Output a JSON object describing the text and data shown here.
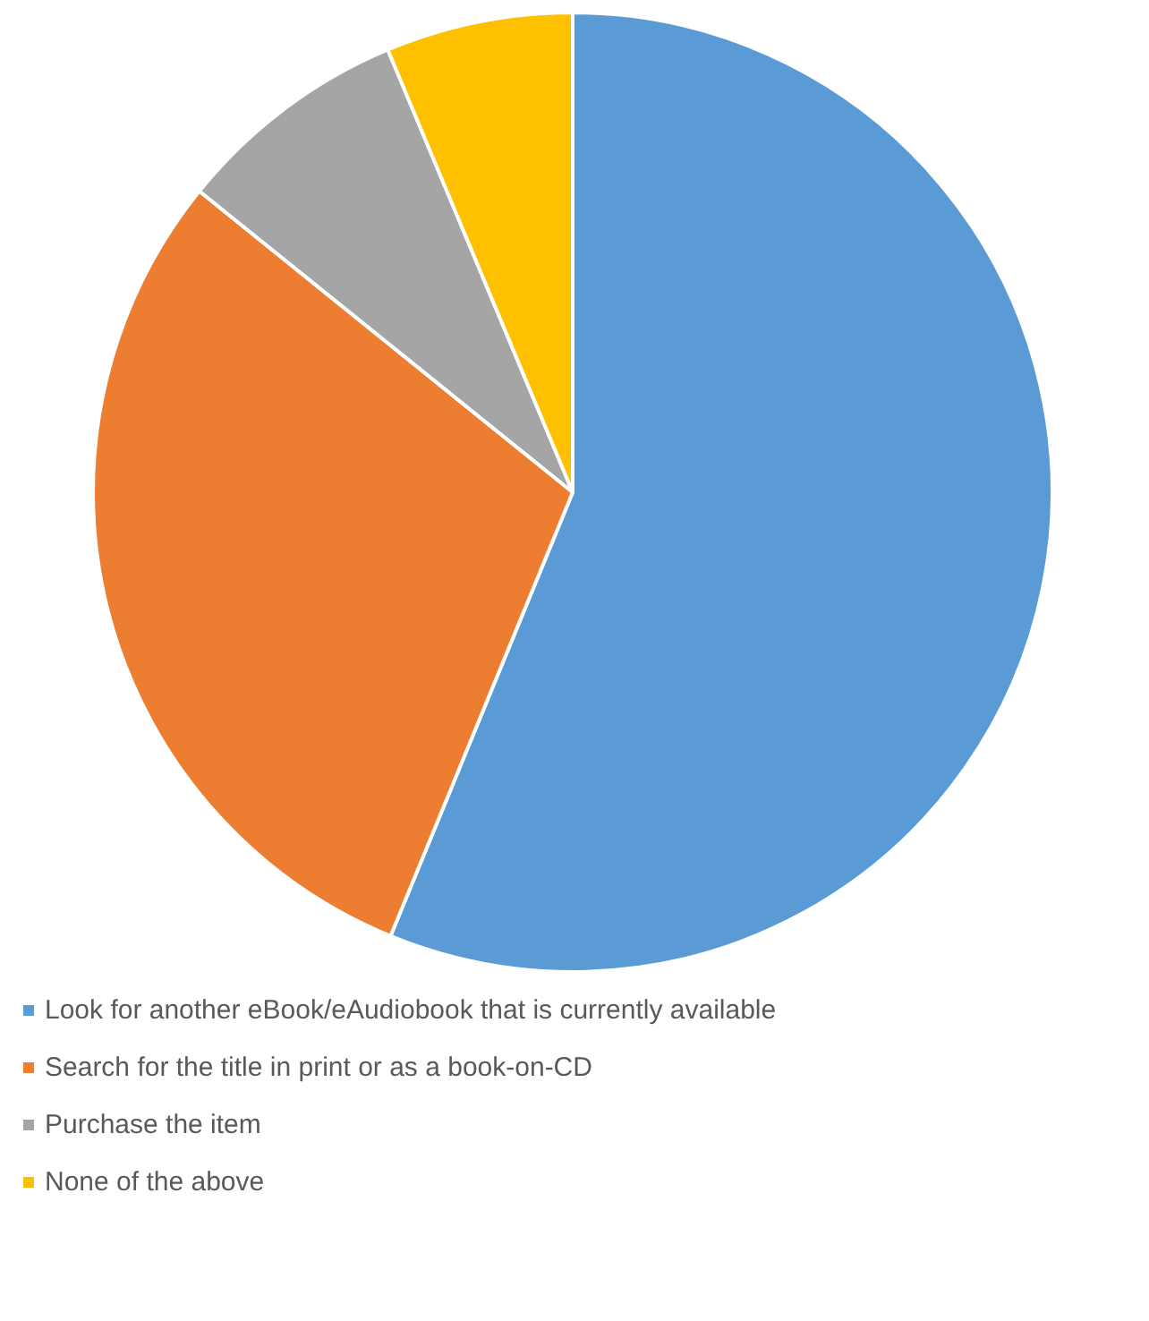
{
  "chart_data": {
    "type": "pie",
    "categories": [
      "Look for another eBook/eAudiobook that is currently available",
      "Search for the title in print or as a book-on-CD",
      "Purchase the item",
      "None of the above"
    ],
    "values": [
      56.2,
      29.6,
      7.9,
      6.3
    ],
    "colors": [
      "#5b9bd5",
      "#ed7d31",
      "#a5a5a5",
      "#ffc000"
    ],
    "legend": "bottom"
  }
}
